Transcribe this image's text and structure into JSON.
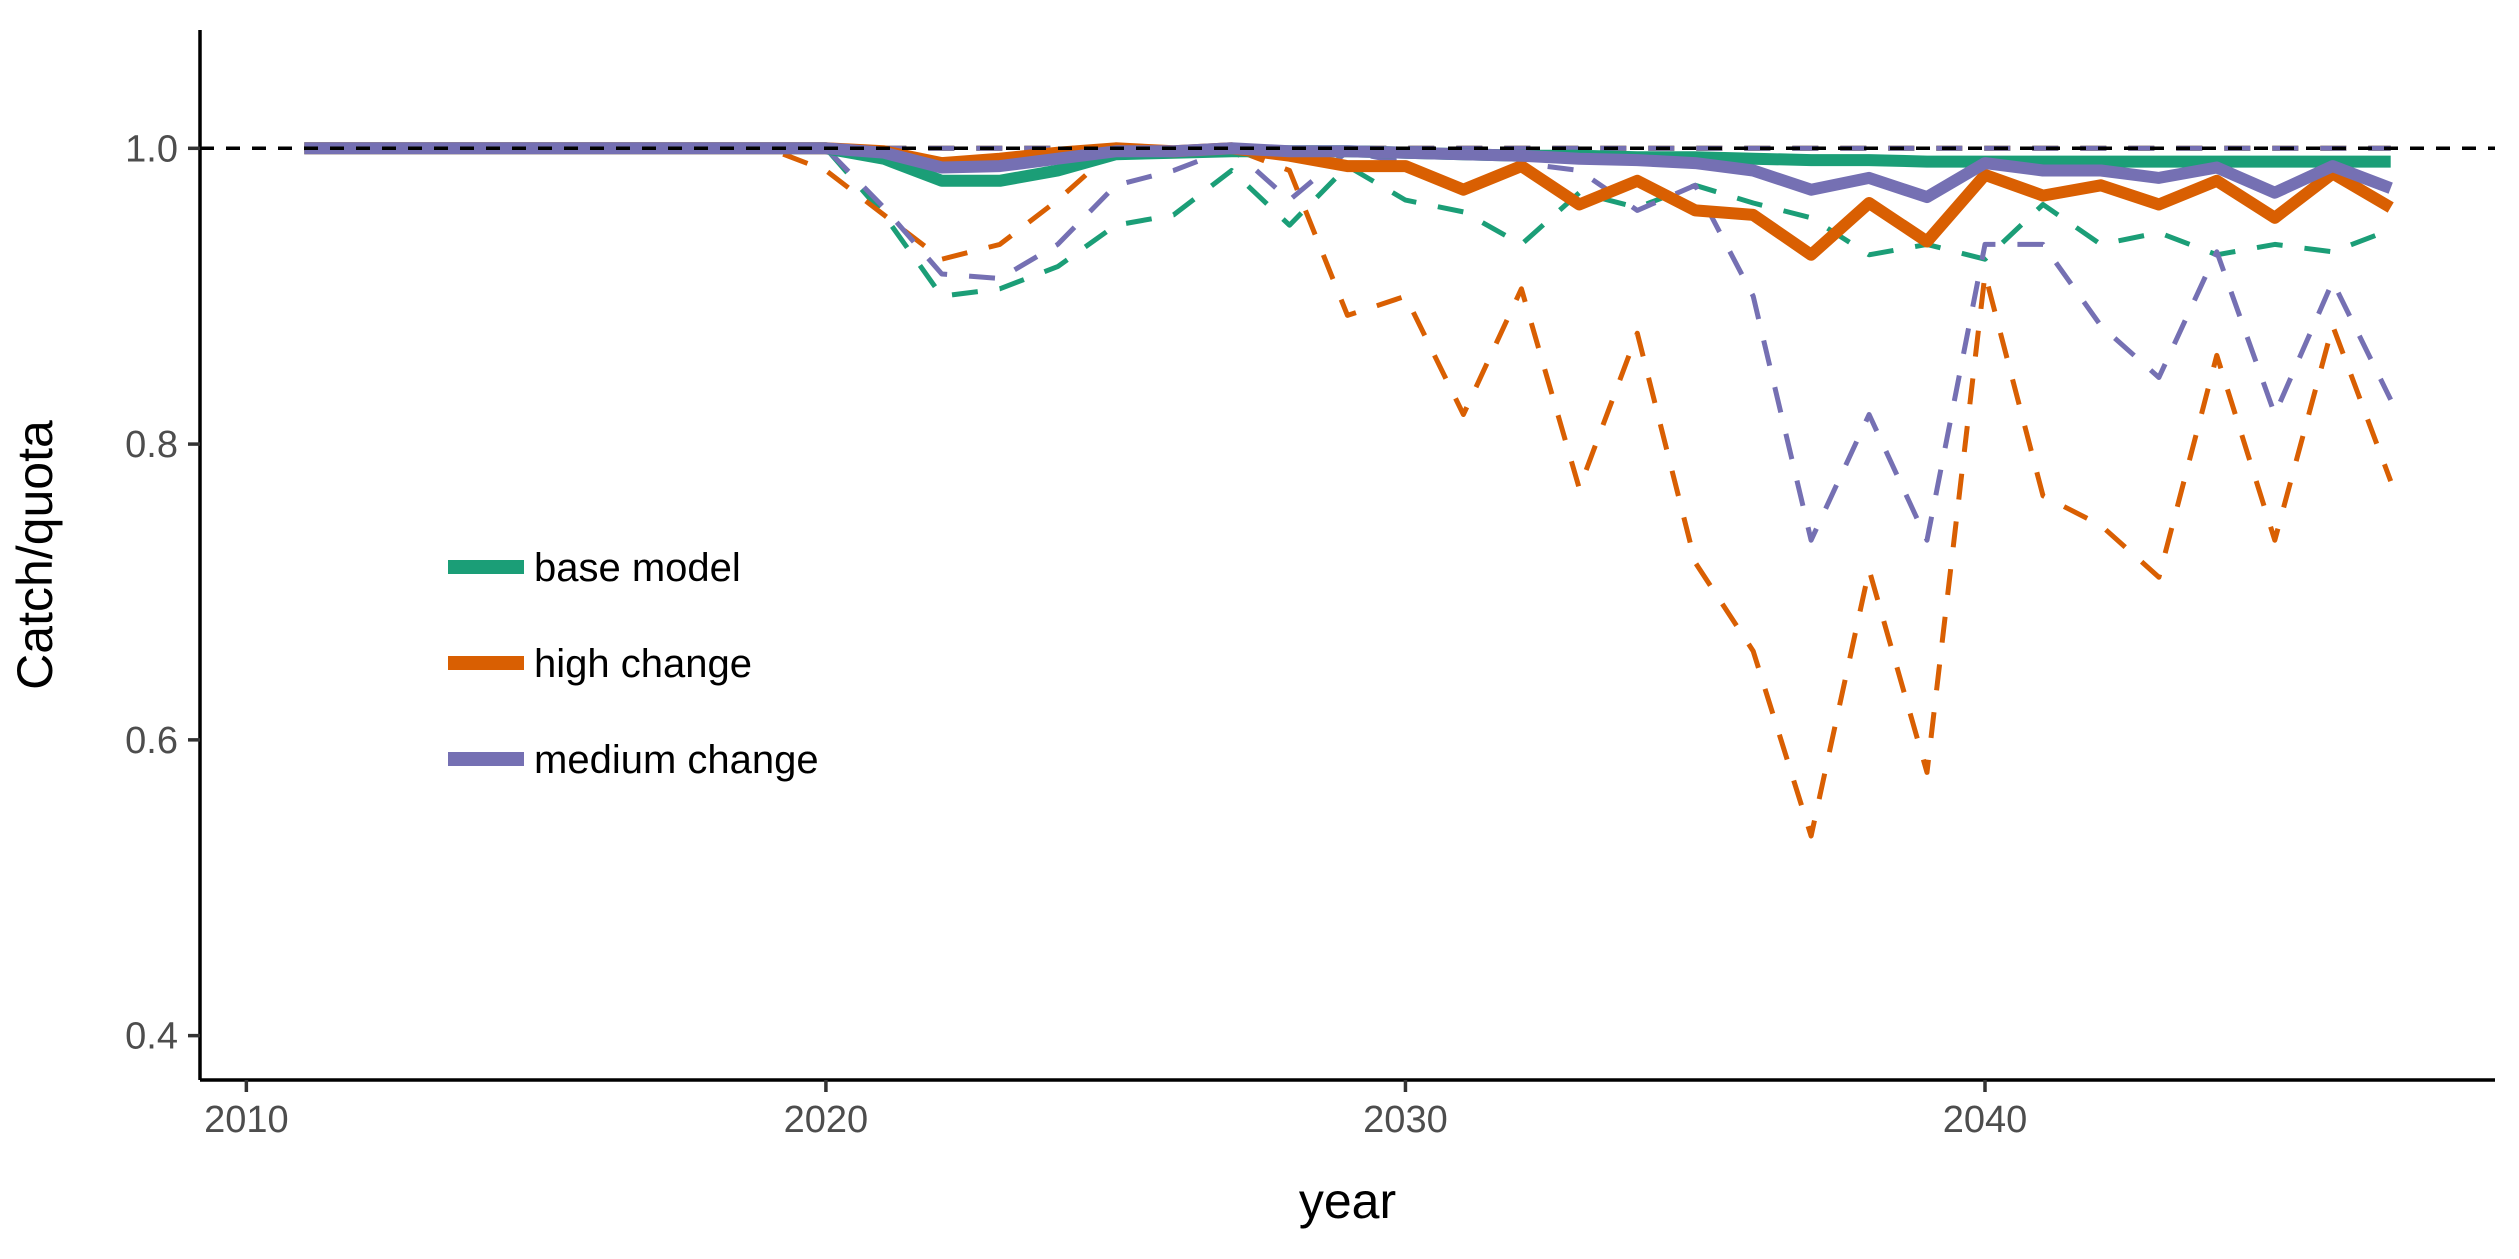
{
  "chart_data": {
    "type": "line",
    "xlabel": "year",
    "ylabel": "Catch/quota",
    "xlim": [
      2009.2,
      2048.8
    ],
    "ylim": [
      0.37,
      1.08
    ],
    "xticks": [
      2010,
      2020,
      2030,
      2040
    ],
    "yticks": [
      0.4,
      0.6,
      0.8,
      1.0
    ],
    "xtick_labels": [
      "2010",
      "2020",
      "2030",
      "2040"
    ],
    "ytick_labels": [
      "0.4",
      "0.6",
      "0.8",
      "1.0"
    ],
    "reference_line": {
      "y": 1.0,
      "style": "dashed",
      "color": "#000000"
    },
    "grid": false,
    "legend_position": "left-middle, inside plot",
    "x": [
      2011,
      2012,
      2013,
      2014,
      2015,
      2016,
      2017,
      2018,
      2019,
      2020,
      2021,
      2022,
      2023,
      2024,
      2025,
      2026,
      2027,
      2028,
      2029,
      2030,
      2031,
      2032,
      2033,
      2034,
      2035,
      2036,
      2037,
      2038,
      2039,
      2040,
      2041,
      2042,
      2043,
      2044,
      2045,
      2046,
      2047
    ],
    "series": [
      {
        "name": "base model",
        "color": "#1b9e77",
        "mean": [
          1.0,
          1.0,
          1.0,
          1.0,
          1.0,
          1.0,
          1.0,
          1.0,
          1.0,
          1.0,
          0.993,
          0.978,
          0.978,
          0.985,
          0.996,
          0.997,
          0.998,
          0.998,
          0.998,
          0.997,
          0.996,
          0.995,
          0.995,
          0.994,
          0.994,
          0.993,
          0.992,
          0.992,
          0.991,
          0.991,
          0.991,
          0.991,
          0.991,
          0.991,
          0.991,
          0.991,
          0.991
        ],
        "lower": [
          1.0,
          1.0,
          1.0,
          1.0,
          1.0,
          1.0,
          1.0,
          1.0,
          1.0,
          1.0,
          0.955,
          0.9,
          0.905,
          0.92,
          0.948,
          0.955,
          0.985,
          0.948,
          0.988,
          0.965,
          0.957,
          0.935,
          0.97,
          0.96,
          0.975,
          0.963,
          0.953,
          0.928,
          0.935,
          0.925,
          0.962,
          0.935,
          0.943,
          0.928,
          0.935,
          0.93,
          0.945
        ],
        "upper": [
          1.0,
          1.0,
          1.0,
          1.0,
          1.0,
          1.0,
          1.0,
          1.0,
          1.0,
          1.0,
          1.0,
          1.0,
          1.0,
          1.0,
          1.0,
          1.0,
          1.0,
          1.0,
          1.0,
          1.0,
          1.0,
          1.0,
          1.0,
          1.0,
          1.0,
          1.0,
          1.0,
          1.0,
          1.0,
          1.0,
          1.0,
          1.0,
          1.0,
          1.0,
          1.0,
          1.0,
          1.0
        ]
      },
      {
        "name": "high change",
        "color": "#d95f02",
        "mean": [
          1.0,
          1.0,
          1.0,
          1.0,
          1.0,
          1.0,
          1.0,
          1.0,
          1.0,
          1.0,
          0.998,
          0.99,
          0.993,
          0.997,
          1.0,
          0.998,
          1.0,
          0.995,
          0.988,
          0.988,
          0.972,
          0.988,
          0.962,
          0.978,
          0.958,
          0.955,
          0.928,
          0.963,
          0.937,
          0.982,
          0.968,
          0.975,
          0.962,
          0.978,
          0.953,
          0.983,
          0.96
        ],
        "lower": [
          1.0,
          1.0,
          1.0,
          1.0,
          1.0,
          1.0,
          1.0,
          1.0,
          1.0,
          0.985,
          0.955,
          0.925,
          0.935,
          0.965,
          1.0,
          0.995,
          1.0,
          0.985,
          0.887,
          0.9,
          0.82,
          0.905,
          0.77,
          0.875,
          0.72,
          0.66,
          0.535,
          0.715,
          0.578,
          0.915,
          0.765,
          0.745,
          0.71,
          0.86,
          0.735,
          0.88,
          0.775
        ],
        "upper": [
          1.0,
          1.0,
          1.0,
          1.0,
          1.0,
          1.0,
          1.0,
          1.0,
          1.0,
          1.0,
          1.0,
          1.0,
          1.0,
          1.0,
          1.0,
          1.0,
          1.0,
          1.0,
          1.0,
          1.0,
          1.0,
          1.0,
          1.0,
          1.0,
          1.0,
          1.0,
          1.0,
          1.0,
          1.0,
          1.0,
          1.0,
          1.0,
          1.0,
          1.0,
          1.0,
          1.0,
          1.0
        ]
      },
      {
        "name": "medium change",
        "color": "#7570b3",
        "mean": [
          1.0,
          1.0,
          1.0,
          1.0,
          1.0,
          1.0,
          1.0,
          1.0,
          1.0,
          1.0,
          0.997,
          0.987,
          0.988,
          0.993,
          0.998,
          0.998,
          1.0,
          0.998,
          0.998,
          0.997,
          0.996,
          0.995,
          0.993,
          0.992,
          0.99,
          0.985,
          0.972,
          0.98,
          0.967,
          0.99,
          0.985,
          0.985,
          0.98,
          0.987,
          0.97,
          0.988,
          0.973
        ],
        "lower": [
          1.0,
          1.0,
          1.0,
          1.0,
          1.0,
          1.0,
          1.0,
          1.0,
          1.0,
          1.0,
          0.96,
          0.915,
          0.912,
          0.935,
          0.975,
          0.985,
          1.0,
          0.965,
          0.998,
          0.99,
          0.97,
          0.99,
          0.985,
          0.958,
          0.975,
          0.9,
          0.735,
          0.82,
          0.735,
          0.935,
          0.935,
          0.88,
          0.845,
          0.93,
          0.82,
          0.91,
          0.83
        ],
        "upper": [
          1.0,
          1.0,
          1.0,
          1.0,
          1.0,
          1.0,
          1.0,
          1.0,
          1.0,
          1.0,
          1.0,
          1.0,
          1.0,
          1.0,
          1.0,
          1.0,
          1.0,
          1.0,
          1.0,
          1.0,
          1.0,
          1.0,
          1.0,
          1.0,
          1.0,
          1.0,
          1.0,
          1.0,
          1.0,
          1.0,
          1.0,
          1.0,
          1.0,
          1.0,
          1.0,
          1.0,
          1.0
        ]
      }
    ]
  }
}
